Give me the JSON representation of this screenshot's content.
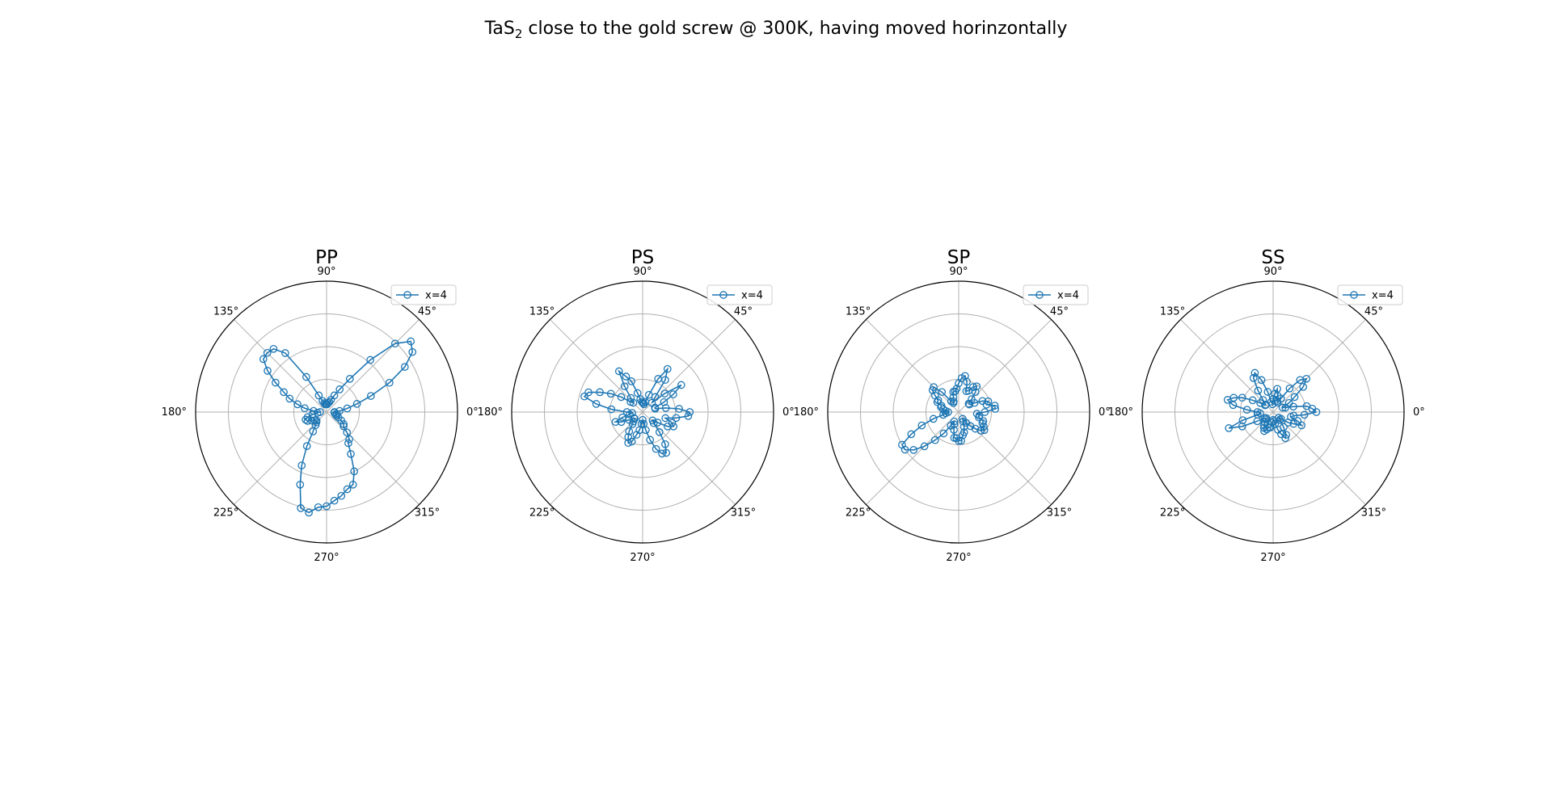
{
  "figure": {
    "title_main": "TaS",
    "title_sub": "2",
    "title_rest": " close to the gold screw @ 300K, having moved horinzontally"
  },
  "colors": {
    "series": "#1f77b4",
    "grid": "#b0b0b0",
    "axis": "#000000"
  },
  "chart_data": [
    {
      "type": "scatter",
      "projection": "polar",
      "title": "PP",
      "angle_labels": [
        "0°",
        "45°",
        "90°",
        "135°",
        "180°",
        "225°",
        "270°",
        "315°"
      ],
      "rlim": [
        0,
        1.0
      ],
      "grid": true,
      "legend_position": "upper-right",
      "series": [
        {
          "name": "x=4",
          "marker": "open-circle",
          "theta_deg": [
            0,
            5,
            10,
            15,
            20,
            25,
            30,
            35,
            40,
            45,
            50,
            55,
            60,
            65,
            70,
            75,
            80,
            85,
            90,
            95,
            100,
            105,
            110,
            115,
            120,
            125,
            130,
            135,
            140,
            145,
            150,
            155,
            160,
            165,
            170,
            175,
            180,
            185,
            190,
            195,
            200,
            205,
            210,
            215,
            220,
            225,
            230,
            235,
            240,
            245,
            250,
            255,
            260,
            265,
            270,
            275,
            280,
            285,
            290,
            295,
            300,
            305,
            310,
            315,
            320,
            325,
            330,
            335,
            340,
            345,
            350,
            355
          ],
          "r": [
            0.06,
            0.1,
            0.16,
            0.24,
            0.36,
            0.53,
            0.69,
            0.8,
            0.84,
            0.74,
            0.52,
            0.31,
            0.2,
            0.14,
            0.1,
            0.08,
            0.07,
            0.06,
            0.06,
            0.06,
            0.06,
            0.07,
            0.09,
            0.14,
            0.31,
            0.55,
            0.63,
            0.64,
            0.63,
            0.55,
            0.45,
            0.36,
            0.3,
            0.23,
            0.17,
            0.1,
            0.05,
            0.07,
            0.11,
            0.15,
            0.17,
            0.16,
            0.13,
            0.11,
            0.1,
            0.11,
            0.13,
            0.18,
            0.3,
            0.45,
            0.59,
            0.76,
            0.78,
            0.73,
            0.72,
            0.68,
            0.65,
            0.61,
            0.59,
            0.5,
            0.37,
            0.29,
            0.27,
            0.22,
            0.17,
            0.16,
            0.13,
            0.1,
            0.08,
            0.07,
            0.08,
            0.06
          ]
        }
      ]
    },
    {
      "type": "scatter",
      "projection": "polar",
      "title": "PS",
      "angle_labels": [
        "0°",
        "45°",
        "90°",
        "135°",
        "180°",
        "225°",
        "270°",
        "315°"
      ],
      "rlim": [
        0,
        1.0
      ],
      "grid": true,
      "legend_position": "upper-right",
      "series": [
        {
          "name": "x=4",
          "marker": "open-circle",
          "theta_deg": [
            0,
            5,
            10,
            15,
            20,
            25,
            30,
            35,
            40,
            45,
            50,
            55,
            60,
            65,
            70,
            75,
            80,
            85,
            90,
            95,
            100,
            105,
            110,
            115,
            120,
            125,
            130,
            135,
            140,
            145,
            150,
            155,
            160,
            165,
            170,
            175,
            180,
            185,
            190,
            195,
            200,
            205,
            210,
            215,
            220,
            225,
            230,
            235,
            240,
            245,
            250,
            255,
            260,
            265,
            270,
            275,
            280,
            285,
            290,
            295,
            300,
            305,
            310,
            315,
            320,
            325,
            330,
            335,
            340,
            345,
            350,
            355
          ],
          "r": [
            0.36,
            0.28,
            0.18,
            0.1,
            0.1,
            0.18,
            0.27,
            0.36,
            0.22,
            0.1,
            0.15,
            0.3,
            0.38,
            0.28,
            0.14,
            0.08,
            0.06,
            0.07,
            0.07,
            0.08,
            0.1,
            0.15,
            0.25,
            0.3,
            0.36,
            0.24,
            0.14,
            0.1,
            0.12,
            0.2,
            0.28,
            0.36,
            0.44,
            0.46,
            0.36,
            0.24,
            0.12,
            0.08,
            0.1,
            0.16,
            0.22,
            0.18,
            0.12,
            0.08,
            0.08,
            0.1,
            0.12,
            0.18,
            0.22,
            0.26,
            0.24,
            0.18,
            0.14,
            0.09,
            0.06,
            0.09,
            0.14,
            0.22,
            0.3,
            0.35,
            0.36,
            0.3,
            0.2,
            0.12,
            0.1,
            0.14,
            0.22,
            0.26,
            0.24,
            0.18,
            0.26,
            0.35
          ]
        }
      ]
    },
    {
      "type": "scatter",
      "projection": "polar",
      "title": "SP",
      "angle_labels": [
        "0°",
        "45°",
        "90°",
        "135°",
        "180°",
        "225°",
        "270°",
        "315°"
      ],
      "rlim": [
        0,
        1.0
      ],
      "grid": true,
      "legend_position": "upper-right",
      "series": [
        {
          "name": "x=4",
          "marker": "open-circle",
          "theta_deg": [
            0,
            5,
            10,
            15,
            20,
            25,
            30,
            35,
            40,
            45,
            50,
            55,
            60,
            65,
            70,
            75,
            80,
            85,
            90,
            95,
            100,
            105,
            110,
            115,
            120,
            125,
            130,
            135,
            140,
            145,
            150,
            155,
            160,
            165,
            170,
            175,
            180,
            185,
            190,
            195,
            200,
            205,
            210,
            215,
            220,
            225,
            230,
            235,
            240,
            245,
            250,
            255,
            260,
            265,
            270,
            275,
            280,
            285,
            290,
            295,
            300,
            305,
            310,
            315,
            320,
            325,
            330,
            335,
            340,
            345,
            350,
            355
          ],
          "r": [
            0.2,
            0.28,
            0.28,
            0.22,
            0.24,
            0.2,
            0.14,
            0.1,
            0.1,
            0.14,
            0.2,
            0.24,
            0.22,
            0.18,
            0.17,
            0.24,
            0.28,
            0.26,
            0.22,
            0.18,
            0.16,
            0.16,
            0.12,
            0.09,
            0.08,
            0.1,
            0.2,
            0.27,
            0.26,
            0.22,
            0.18,
            0.18,
            0.14,
            0.14,
            0.12,
            0.1,
            0.08,
            0.1,
            0.12,
            0.2,
            0.3,
            0.4,
            0.5,
            0.5,
            0.45,
            0.37,
            0.28,
            0.2,
            0.12,
            0.08,
            0.1,
            0.14,
            0.2,
            0.2,
            0.22,
            0.22,
            0.18,
            0.16,
            0.12,
            0.08,
            0.06,
            0.1,
            0.14,
            0.18,
            0.22,
            0.24,
            0.22,
            0.2,
            0.2,
            0.16,
            0.16,
            0.14
          ]
        }
      ]
    },
    {
      "type": "scatter",
      "projection": "polar",
      "title": "SS",
      "angle_labels": [
        "0°",
        "45°",
        "90°",
        "135°",
        "180°",
        "225°",
        "270°",
        "315°"
      ],
      "rlim": [
        0,
        1.0
      ],
      "grid": true,
      "legend_position": "upper-right",
      "series": [
        {
          "name": "x=4",
          "marker": "open-circle",
          "theta_deg": [
            0,
            5,
            10,
            15,
            20,
            25,
            30,
            35,
            40,
            45,
            50,
            55,
            60,
            65,
            70,
            75,
            80,
            85,
            90,
            95,
            100,
            105,
            110,
            115,
            120,
            125,
            130,
            135,
            140,
            145,
            150,
            155,
            160,
            165,
            170,
            175,
            180,
            185,
            190,
            195,
            200,
            205,
            210,
            215,
            220,
            225,
            230,
            235,
            240,
            245,
            250,
            255,
            260,
            265,
            270,
            275,
            280,
            285,
            290,
            295,
            300,
            305,
            310,
            315,
            320,
            325,
            330,
            335,
            340,
            345,
            350,
            355
          ],
          "r": [
            0.33,
            0.3,
            0.26,
            0.16,
            0.1,
            0.08,
            0.14,
            0.2,
            0.3,
            0.36,
            0.32,
            0.22,
            0.12,
            0.08,
            0.09,
            0.13,
            0.18,
            0.14,
            0.1,
            0.06,
            0.08,
            0.16,
            0.26,
            0.33,
            0.3,
            0.2,
            0.12,
            0.08,
            0.08,
            0.12,
            0.18,
            0.26,
            0.32,
            0.36,
            0.31,
            0.2,
            0.12,
            0.1,
            0.12,
            0.24,
            0.36,
            0.26,
            0.14,
            0.08,
            0.07,
            0.08,
            0.1,
            0.12,
            0.14,
            0.16,
            0.14,
            0.12,
            0.12,
            0.08,
            0.06,
            0.07,
            0.09,
            0.14,
            0.18,
            0.22,
            0.2,
            0.14,
            0.08,
            0.06,
            0.08,
            0.14,
            0.18,
            0.24,
            0.2,
            0.14,
            0.16,
            0.24
          ]
        }
      ]
    }
  ]
}
